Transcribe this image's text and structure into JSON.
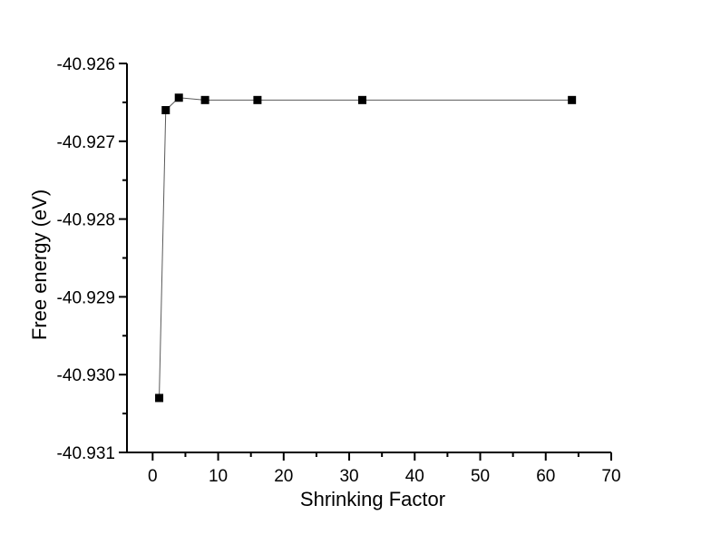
{
  "figure": {
    "background_color": "#ffffff",
    "text_color": "#000000"
  },
  "chart_data": {
    "type": "line",
    "title": "",
    "xlabel": "Shrinking Factor",
    "ylabel": "Free energy (eV)",
    "x": [
      1,
      2,
      4,
      8,
      16,
      32,
      64
    ],
    "y": [
      -40.9303,
      -40.9266,
      -40.92644,
      -40.92647,
      -40.92647,
      -40.92647,
      -40.92647
    ],
    "xlim": [
      -3.92,
      70
    ],
    "ylim": [
      -40.931,
      -40.926
    ],
    "x_major_ticks": [
      0,
      10,
      20,
      30,
      40,
      50,
      60,
      70
    ],
    "x_major_tick_labels": [
      "0",
      "10",
      "20",
      "30",
      "40",
      "50",
      "60",
      "70"
    ],
    "x_minor_ticks": [
      5,
      15,
      25,
      35,
      45,
      55,
      65
    ],
    "y_major_ticks": [
      -40.926,
      -40.927,
      -40.928,
      -40.929,
      -40.93,
      -40.931
    ],
    "y_major_tick_labels": [
      "-40.926",
      "-40.927",
      "-40.928",
      "-40.929",
      "-40.930",
      "-40.931"
    ],
    "y_minor_ticks": [
      -40.9265,
      -40.9275,
      -40.9285,
      -40.9295,
      -40.9305
    ],
    "grid": false,
    "legend": false,
    "marker": "filled-square",
    "marker_color": "#000000",
    "line_color": "#5a5a5a",
    "axis_color": "#000000"
  }
}
